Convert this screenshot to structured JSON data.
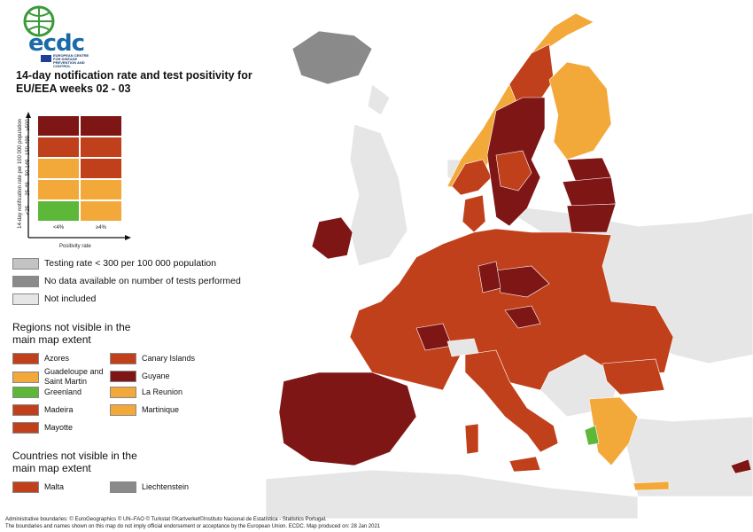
{
  "logo": {
    "word": "ecdc",
    "subtitle": "EUROPEAN CENTRE FOR DISEASE PREVENTION AND CONTROL"
  },
  "title": "14-day notification rate and test positivity for EU/EEA weeks 02 - 03",
  "matrix": {
    "y_axis_label": "14-day notification rate per 100 000 population",
    "y_categories": [
      "<25",
      "25-49",
      "50-149",
      "150-499",
      "≥500"
    ],
    "x_axis_label": "Positivity rate",
    "x_categories": [
      "<4%",
      "≥4%"
    ],
    "cells": [
      [
        "#5db83a",
        "#f3a93a"
      ],
      [
        "#f3a93a",
        "#f3a93a"
      ],
      [
        "#f3a93a",
        "#c1401c"
      ],
      [
        "#c1401c",
        "#c1401c"
      ],
      [
        "#7e1616",
        "#7e1616"
      ]
    ]
  },
  "legend_other": [
    {
      "label": "Testing rate < 300 per 100 000 population",
      "color": "#c3c3c3"
    },
    {
      "label": "No data available on number of tests performed",
      "color": "#8a8a8a"
    },
    {
      "label": "Not included",
      "color": "#e6e6e6"
    }
  ],
  "regions_title": "Regions not visible in the main map extent",
  "regions_left": [
    {
      "label": "Azores",
      "color": "#c1401c"
    },
    {
      "label": "Guadeloupe and Saint Martin",
      "color": "#f3a93a"
    },
    {
      "label": "Greenland",
      "color": "#5db83a"
    },
    {
      "label": "Madeira",
      "color": "#c1401c"
    },
    {
      "label": "Mayotte",
      "color": "#c1401c"
    }
  ],
  "regions_right": [
    {
      "label": "Canary Islands",
      "color": "#c1401c"
    },
    {
      "label": "Guyane",
      "color": "#7e1616"
    },
    {
      "label": "La Reunion",
      "color": "#f3a93a"
    },
    {
      "label": "Martinique",
      "color": "#f3a93a"
    }
  ],
  "countries_title": "Countries not visible in the main map extent",
  "countries": [
    {
      "label": "Malta",
      "color": "#c1401c"
    },
    {
      "label": "Liechtenstein",
      "color": "#8a8a8a"
    }
  ],
  "colors": {
    "sea": "#ffffff",
    "not_included": "#e6e6e6",
    "dark_red": "#7e1616",
    "red": "#c1401c",
    "orange": "#f3a93a",
    "green": "#5db83a",
    "grey": "#8a8a8a"
  },
  "footer": {
    "line1": "Administrative boundaries: © EuroGeographics © UN–FAO © Turkstat ©Kartverket©Instituto Nacional de Estatística - Statistics Portugal.",
    "line2": "The boundaries and names shown on this map do not imply official endorsement or acceptance by the European Union. ECDC. Map produced on: 28 Jan 2021"
  }
}
